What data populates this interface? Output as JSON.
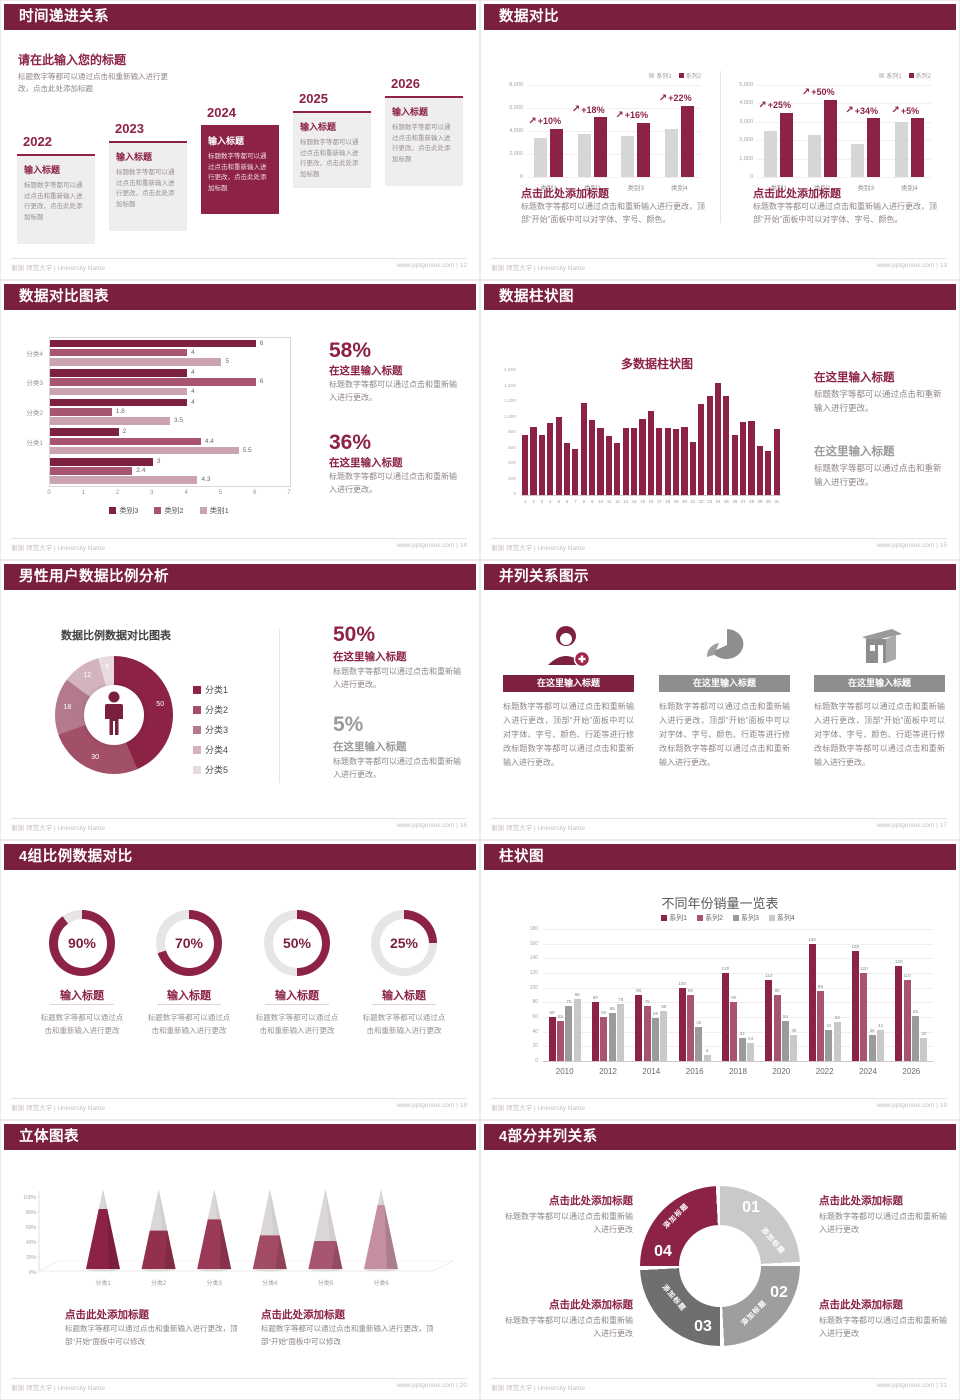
{
  "footer": {
    "left": "谢谢·师范大学 | University Name"
  },
  "icons": {
    "growth_arrow": "↗"
  },
  "colors": {
    "header": "#7a1f3e",
    "accent": "#8c2344",
    "rose": "#a8546e",
    "mauve": "#b3798c",
    "pale": "#d3b3bd",
    "palest": "#e9dade",
    "gray_bar": "#d6d6d6",
    "gray_dark": "#9b9b9b",
    "gray_light": "#c9c9c9"
  },
  "slides": {
    "s1": {
      "title": "时间递进关系",
      "page_label": "www.pptgenius.com | 12",
      "heading": "请在此输入您的标题",
      "intro": "标题数字等都可以通过点击和重新输入进行更改，点击此处添加标题",
      "card_title": "输入标题",
      "card_body": "标题数字等都可以通过点击和重新输入进行更改，点击此处添加标题",
      "years": [
        "2022",
        "2023",
        "2024",
        "2025",
        "2026"
      ]
    },
    "s2": {
      "title": "数据对比",
      "page_label": "www.pptgenius.com | 13",
      "heading": "点击此处添加标题",
      "body": "标题数字等都可以通过点击和重新输入进行更改，顶部“开始”面板中可以对字体、字号、颜色。"
    },
    "s3": {
      "title": "数据对比图表",
      "page_label": "www.pptgenius.com | 14",
      "stat1": "58%",
      "stat2": "36%",
      "sub": "在这里输入标题",
      "body": "标题数字等都可以通过点击和重新输入进行更改。"
    },
    "s4": {
      "title": "数据柱状图",
      "page_label": "www.pptgenius.com | 15",
      "sub": "在这里输入标题",
      "body": "标题数字等都可以通过点击和重新输入进行更改。"
    },
    "s5": {
      "title": "男性用户数据比例分析",
      "page_label": "www.pptgenius.com | 16",
      "stat1": "50%",
      "stat2": "5%",
      "sub": "在这里输入标题",
      "body": "标题数字等都可以通过点击和重新输入进行更改。"
    },
    "s6": {
      "title": "并列关系图示",
      "page_label": "www.pptgenius.com | 17",
      "banner": "在这里输入标题",
      "body": "标题数字等都可以通过点击和重新输入进行更改，顶部“开始”面板中可以对字体、字号、颜色、行距等进行修改标题数字等都可以通过点击和重新输入进行更改。"
    },
    "s7": {
      "title": "4组比例数据对比",
      "page_label": "www.pptgenius.com | 18",
      "card_title": "输入标题",
      "body": "标题数字等都可以通过点击和重新输入进行更改"
    },
    "s8": {
      "title": "柱状图",
      "page_label": "www.pptgenius.com | 19"
    },
    "s9": {
      "title": "立体图表",
      "page_label": "www.pptgenius.com | 20",
      "heading": "点击此处添加标题",
      "body": "标题数字等都可以通过点击和重新输入进行更改，顶部“开始”面板中可以修改"
    },
    "s10": {
      "title": "4部分并列关系",
      "page_label": "www.pptgenius.com | 21",
      "heading": "点击此处添加标题",
      "body": "标题数字等都可以通过点击和重新输入进行更改"
    }
  },
  "chart_data": {
    "s2_left": {
      "type": "bar",
      "ymax": 8000,
      "yticks": [
        "8,000",
        "6,000",
        "4,000",
        "2,000",
        "0"
      ],
      "categories": [
        "类别1",
        "类别2",
        "类别3",
        "类别4"
      ],
      "series": [
        {
          "name": "系列1",
          "color": "#d6d6d6",
          "values": [
            3400,
            3700,
            3600,
            4200
          ]
        },
        {
          "name": "系列2",
          "color": "#8c2344",
          "values": [
            4200,
            5200,
            4700,
            6200
          ]
        }
      ],
      "growth": [
        "+10%",
        "+18%",
        "+16%",
        "+22%"
      ]
    },
    "s2_right": {
      "type": "bar",
      "ymax": 5000,
      "yticks": [
        "5,000",
        "4,000",
        "3,000",
        "2,000",
        "1,000",
        "0"
      ],
      "categories": [
        "类别1",
        "类别2",
        "类别3",
        "类别4"
      ],
      "series": [
        {
          "name": "系列1",
          "color": "#d6d6d6",
          "values": [
            2500,
            2300,
            1800,
            3000
          ]
        },
        {
          "name": "系列2",
          "color": "#8c2344",
          "values": [
            3500,
            4200,
            3200,
            3200
          ]
        }
      ],
      "growth": [
        "+25%",
        "+50%",
        "+34%",
        "+5%"
      ]
    },
    "s3": {
      "type": "bar-horizontal",
      "xmax": 7,
      "xticks": [
        "0",
        "1",
        "2",
        "3",
        "4",
        "5",
        "6",
        "7"
      ],
      "legend": [
        {
          "name": "类别3",
          "color": "#7e2140"
        },
        {
          "name": "类别2",
          "color": "#a8566f"
        },
        {
          "name": "类别1",
          "color": "#cba3b1"
        }
      ],
      "groups": [
        {
          "label": "分类4",
          "values": [
            6,
            4,
            5
          ]
        },
        {
          "label": "分类3",
          "values": [
            4,
            6,
            4
          ]
        },
        {
          "label": "分类2",
          "values": [
            4,
            1.8,
            3.5
          ]
        },
        {
          "label": "分类1",
          "values": [
            2,
            4.4,
            5.5
          ]
        },
        {
          "label": "",
          "values": [
            3,
            2.4,
            4.3
          ]
        }
      ]
    },
    "s4": {
      "type": "bar",
      "title": "多数据柱状图",
      "ymax": 1600,
      "yticks": [
        "1,600",
        "1,400",
        "1,200",
        "1,000",
        "800",
        "600",
        "400",
        "200",
        "0"
      ],
      "categories": [
        "1",
        "2",
        "3",
        "4",
        "5",
        "6",
        "7",
        "8",
        "9",
        "10",
        "11",
        "12",
        "13",
        "14",
        "15",
        "16",
        "17",
        "18",
        "19",
        "20",
        "21",
        "22",
        "23",
        "24",
        "25",
        "26",
        "27",
        "28",
        "29",
        "30",
        "31"
      ],
      "values": [
        780,
        880,
        780,
        930,
        1010,
        670,
        590,
        1190,
        970,
        870,
        760,
        670,
        860,
        870,
        980,
        1080,
        870,
        870,
        850,
        880,
        680,
        1180,
        1280,
        1440,
        1280,
        780,
        940,
        960,
        630,
        570,
        850
      ]
    },
    "s5": {
      "type": "donut",
      "title": "数据比例数据对比图表",
      "slices": [
        {
          "legend": "分类1",
          "label": "50",
          "value": 50,
          "color": "#8c2344"
        },
        {
          "legend": "分类2",
          "label": "30",
          "value": 30,
          "color": "#a24f68"
        },
        {
          "legend": "分类3",
          "label": "18",
          "value": 18,
          "color": "#b3798c"
        },
        {
          "legend": "分类4",
          "label": "12",
          "value": 12,
          "color": "#d3b3bd"
        },
        {
          "legend": "分类5",
          "label": "5",
          "value": 5,
          "color": "#e9dade"
        }
      ]
    },
    "s7": {
      "type": "progress-rings",
      "rings": [
        {
          "label": "90%",
          "value": 90
        },
        {
          "label": "70%",
          "value": 70
        },
        {
          "label": "50%",
          "value": 50
        },
        {
          "label": "25%",
          "value": 25
        }
      ]
    },
    "s8": {
      "type": "bar-grouped",
      "title": "不同年份销量一览表",
      "ymax": 180,
      "ystep": 20,
      "categories": [
        "2010",
        "2012",
        "2014",
        "2016",
        "2018",
        "2020",
        "2022",
        "2024",
        "2026"
      ],
      "series": [
        {
          "name": "系列1",
          "color": "#8c2344",
          "values": [
            60,
            80,
            90,
            100,
            120,
            110,
            160,
            150,
            130
          ]
        },
        {
          "name": "系列2",
          "color": "#a8546e",
          "values": [
            55,
            60,
            75,
            90,
            80,
            90,
            96,
            120,
            110
          ]
        },
        {
          "name": "系列3",
          "color": "#9b9b9b",
          "values": [
            75,
            65,
            58,
            46,
            32,
            54,
            42,
            36,
            62
          ]
        },
        {
          "name": "系列4",
          "color": "#c9c9c9",
          "values": [
            85,
            78,
            68,
            8,
            24,
            36,
            53,
            42,
            32
          ]
        }
      ]
    },
    "s9": {
      "type": "cone",
      "yticks": [
        "100%",
        "80%",
        "60%",
        "40%",
        "20%",
        "0%"
      ],
      "categories": [
        "分类1",
        "分类2",
        "分类3",
        "分类4",
        "分类5",
        "分类6"
      ],
      "fill_percent": [
        75,
        48,
        62,
        42,
        35,
        80
      ],
      "fill_colors": [
        "#8c2344",
        "#93304e",
        "#9a3a57",
        "#a24b64",
        "#a85670",
        "#c490a0"
      ]
    },
    "s10": {
      "type": "cycle",
      "steps": [
        {
          "num": "01",
          "label": "添加标题",
          "color": "#c9c9c9"
        },
        {
          "num": "02",
          "label": "添加标题",
          "color": "#9e9e9e"
        },
        {
          "num": "03",
          "label": "添加标题",
          "color": "#6f6f6f"
        },
        {
          "num": "04",
          "label": "添加标题",
          "color": "#8c2344"
        }
      ]
    }
  }
}
